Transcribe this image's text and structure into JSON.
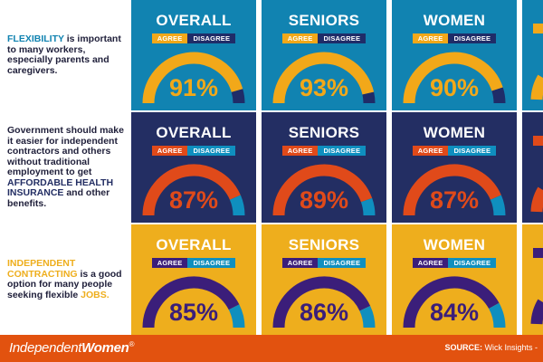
{
  "brand": {
    "part1": "Independent",
    "part2": "Women",
    "mark": "®"
  },
  "source": {
    "label": "SOURCE:",
    "text": "Wick Insights -"
  },
  "colors": {
    "teal": "#1183b1",
    "navy": "#232e63",
    "yellow": "#eeae1d",
    "orange_red": "#e2520f",
    "agree_yellow": "#f2a819",
    "agree_orange": "#e04a1a",
    "agree_purple": "#3b1e7a",
    "disagree_navy": "#1f2c68",
    "disagree_teal": "#0f8fbf",
    "footer": "#e2520f"
  },
  "rows": [
    {
      "id": "flexibility",
      "label_parts": [
        {
          "text": "FLEXIBILITY",
          "color": "#1183b1"
        },
        {
          "text": " is important to many workers, especially parents and caregivers.",
          "color": "#1f1f3a"
        }
      ],
      "bg": "#1183b1",
      "agree_color": "#f2a819",
      "disagree_color": "#1f2c68",
      "pct_color": "#f2a819",
      "cells": [
        {
          "title": "OVERALL",
          "agree": "AGREE",
          "disagree": "DISAGREE",
          "value": 91,
          "display": "91%"
        },
        {
          "title": "SENIORS",
          "agree": "AGREE",
          "disagree": "DISAGREE",
          "value": 93,
          "display": "93%"
        },
        {
          "title": "WOMEN",
          "agree": "AGREE",
          "disagree": "DISAGREE",
          "value": 90,
          "display": "90%"
        }
      ]
    },
    {
      "id": "health-insurance",
      "label_parts": [
        {
          "text": "Government should make it easier for independent contractors and others without traditional employment to get ",
          "color": "#1f1f3a"
        },
        {
          "text": "AFFORDABLE HEALTH INSURANCE",
          "color": "#232e63"
        },
        {
          "text": " and other benefits.",
          "color": "#1f1f3a"
        }
      ],
      "bg": "#232e63",
      "agree_color": "#e04a1a",
      "disagree_color": "#0f8fbf",
      "pct_color": "#e04a1a",
      "cells": [
        {
          "title": "OVERALL",
          "agree": "AGREE",
          "disagree": "DISAGREE",
          "value": 87,
          "display": "87%"
        },
        {
          "title": "SENIORS",
          "agree": "AGREE",
          "disagree": "DISAGREE",
          "value": 89,
          "display": "89%"
        },
        {
          "title": "WOMEN",
          "agree": "AGREE",
          "disagree": "DISAGREE",
          "value": 87,
          "display": "87%"
        }
      ]
    },
    {
      "id": "independent-contracting",
      "label_parts": [
        {
          "text": "INDEPENDENT CONTRACTING",
          "color": "#eeae1d"
        },
        {
          "text": " is a good option for many people seeking flexible ",
          "color": "#1f1f3a"
        },
        {
          "text": "JOBS.",
          "color": "#eeae1d"
        }
      ],
      "bg": "#eeae1d",
      "agree_color": "#3b1e7a",
      "disagree_color": "#0f8fbf",
      "pct_color": "#3b1e7a",
      "cells": [
        {
          "title": "OVERALL",
          "agree": "AGREE",
          "disagree": "DISAGREE",
          "value": 85,
          "display": "85%"
        },
        {
          "title": "SENIORS",
          "agree": "AGREE",
          "disagree": "DISAGREE",
          "value": 86,
          "display": "86%"
        },
        {
          "title": "WOMEN",
          "agree": "AGREE",
          "disagree": "DISAGREE",
          "value": 84,
          "display": "84%"
        }
      ]
    }
  ],
  "chart_data": {
    "type": "gauge",
    "categories": [
      "OVERALL",
      "SENIORS",
      "WOMEN"
    ],
    "series": [
      {
        "name": "FLEXIBILITY",
        "values": [
          91,
          93,
          90
        ]
      },
      {
        "name": "AFFORDABLE HEALTH INSURANCE",
        "values": [
          87,
          89,
          87
        ]
      },
      {
        "name": "INDEPENDENT CONTRACTING",
        "values": [
          85,
          86,
          84
        ]
      }
    ],
    "legend": [
      "AGREE",
      "DISAGREE"
    ],
    "ylim": [
      0,
      100
    ],
    "unit": "%"
  }
}
